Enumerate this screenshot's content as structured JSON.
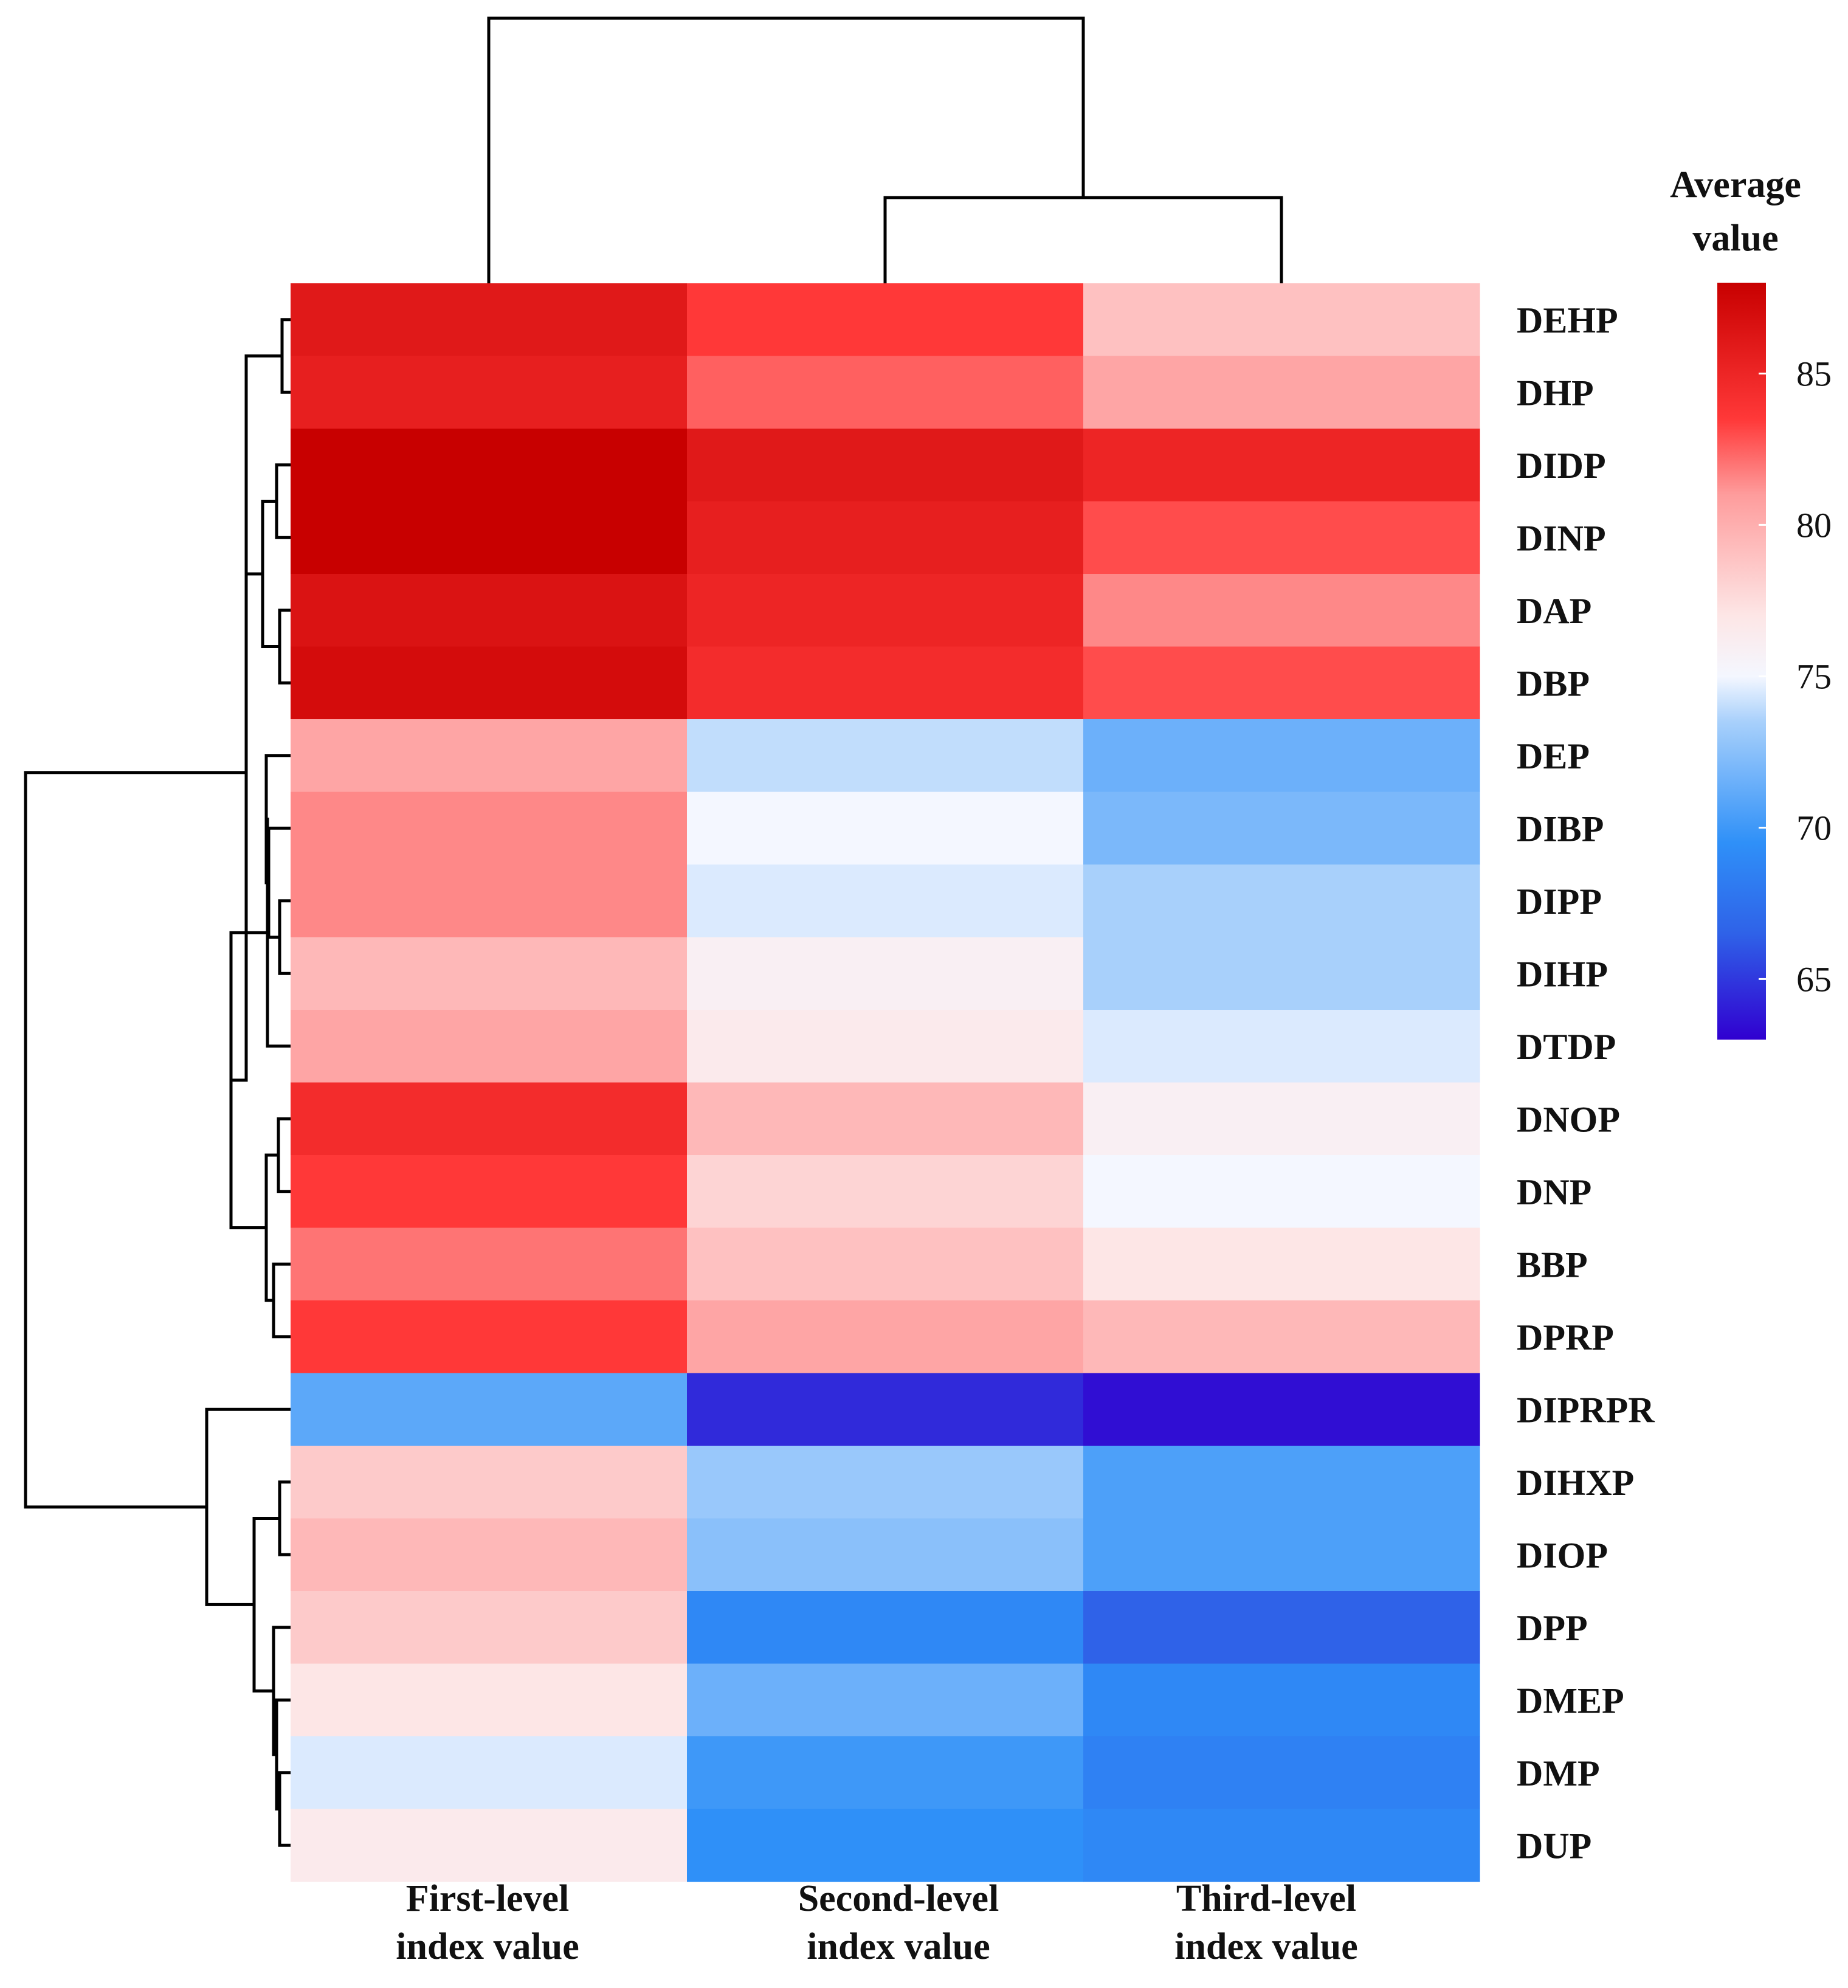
{
  "chart_data": {
    "type": "heatmap",
    "legend": {
      "title_line1": "Average",
      "title_line2": "value",
      "ticks": [
        85,
        80,
        75,
        70,
        65
      ],
      "range": [
        63,
        88
      ]
    },
    "columns": [
      {
        "line1": "First-level",
        "line2": "index value"
      },
      {
        "line1": "Second-level",
        "line2": "index value"
      },
      {
        "line1": "Third-level",
        "line2": "index value"
      }
    ],
    "rows": [
      "DEHP",
      "DHP",
      "DIDP",
      "DINP",
      "DAP",
      "DBP",
      "DEP",
      "DIBP",
      "DIPP",
      "DIHP",
      "DTDP",
      "DNOP",
      "DNP",
      "BBP",
      "DPRP",
      "DIPRPR",
      "DIHXP",
      "DIOP",
      "DPP",
      "DMEP",
      "DMP",
      "DUP"
    ],
    "values": [
      [
        86.0,
        83.5,
        79.0
      ],
      [
        85.5,
        82.5,
        80.5
      ],
      [
        88.0,
        86.0,
        85.0
      ],
      [
        88.0,
        85.5,
        83.0
      ],
      [
        86.5,
        85.0,
        81.5
      ],
      [
        87.0,
        84.5,
        83.0
      ],
      [
        80.5,
        74.0,
        71.5
      ],
      [
        81.5,
        75.0,
        72.0
      ],
      [
        81.5,
        74.5,
        73.5
      ],
      [
        79.5,
        76.0,
        73.5
      ],
      [
        80.5,
        76.5,
        74.5
      ],
      [
        84.5,
        79.5,
        76.0
      ],
      [
        83.5,
        78.0,
        75.0
      ],
      [
        82.0,
        79.0,
        77.0
      ],
      [
        83.5,
        80.5,
        79.5
      ],
      [
        71.0,
        64.5,
        63.5
      ],
      [
        78.5,
        73.0,
        70.5
      ],
      [
        79.5,
        72.5,
        70.5
      ],
      [
        78.5,
        69.0,
        66.5
      ],
      [
        77.0,
        71.5,
        69.0
      ],
      [
        74.5,
        70.0,
        68.5
      ],
      [
        76.5,
        69.5,
        69.0
      ]
    ]
  }
}
